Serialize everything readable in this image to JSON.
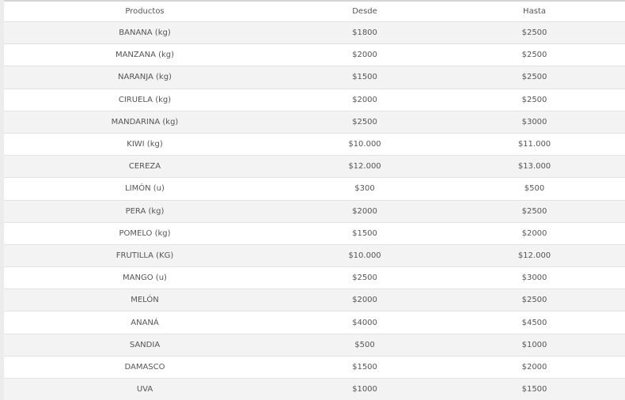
{
  "table": {
    "headers": [
      "Productos",
      "Desde",
      "Hasta"
    ],
    "rows": [
      [
        "BANANA (kg)",
        "$1800",
        "$2500"
      ],
      [
        "MANZANA (kg)",
        "$2000",
        "$2500"
      ],
      [
        "NARANJA (kg)",
        "$1500",
        "$2500"
      ],
      [
        "CIRUELA (kg)",
        "$2000",
        "$2500"
      ],
      [
        "MANDARINA (kg)",
        "$2500",
        "$3000"
      ],
      [
        "KIWI (kg)",
        "$10.000",
        "$11.000"
      ],
      [
        "CEREZA",
        "$12.000",
        "$13.000"
      ],
      [
        "LIMÓN (u)",
        "$300",
        "$500"
      ],
      [
        "PERA (kg)",
        "$2000",
        "$2500"
      ],
      [
        "POMELO (kg)",
        "$1500",
        "$2000"
      ],
      [
        "FRUTILLA (KG)",
        "$10.000",
        "$12.000"
      ],
      [
        "MANGO (u)",
        "$2500",
        "$3000"
      ],
      [
        "MELÓN",
        "$2000",
        "$2500"
      ],
      [
        "ANANÁ",
        "$4000",
        "$4500"
      ],
      [
        "SANDIA",
        "$500",
        "$1000"
      ],
      [
        "DAMASCO",
        "$1500",
        "$2000"
      ],
      [
        "UVA",
        "$1000",
        "$1500"
      ]
    ]
  }
}
